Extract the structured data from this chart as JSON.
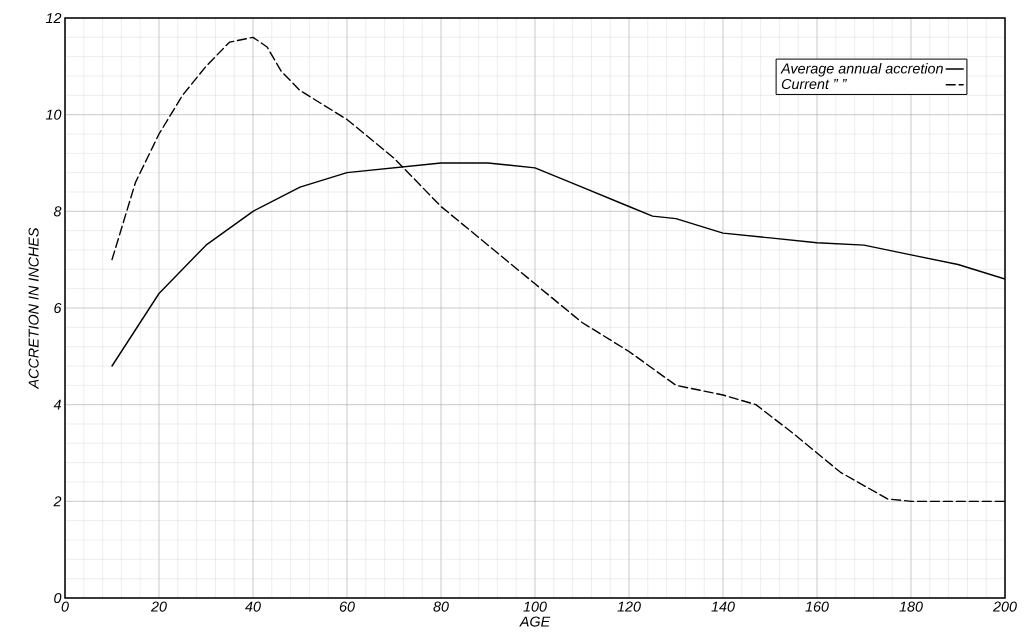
{
  "chart_data": {
    "type": "line",
    "xlabel": "AGE",
    "ylabel": "ACCRETION IN INCHES",
    "x": [
      10,
      15,
      20,
      25,
      30,
      35,
      40,
      43,
      46,
      50,
      60,
      70,
      80,
      90,
      100,
      110,
      120,
      130,
      140,
      147,
      155,
      165,
      175,
      180,
      200
    ],
    "series": [
      {
        "name": "Average annual accretion",
        "color": "#000000",
        "line_style": "solid",
        "x": [
          10,
          20,
          30,
          40,
          50,
          60,
          70,
          80,
          90,
          100,
          110,
          120,
          125,
          130,
          135,
          140,
          150,
          160,
          170,
          180,
          190,
          200
        ],
        "values": [
          4.8,
          6.3,
          7.3,
          8.0,
          8.5,
          8.8,
          8.9,
          9.0,
          9.0,
          8.9,
          8.5,
          8.1,
          7.9,
          7.85,
          7.7,
          7.55,
          7.45,
          7.35,
          7.3,
          7.1,
          6.9,
          6.6
        ]
      },
      {
        "name": "Current ” ”",
        "color": "#000000",
        "line_style": "dashed",
        "values": [
          7.0,
          8.6,
          9.6,
          10.4,
          11.0,
          11.5,
          11.6,
          11.4,
          10.9,
          10.5,
          9.9,
          9.1,
          8.1,
          7.3,
          6.5,
          5.7,
          5.1,
          4.4,
          4.2,
          4.0,
          3.4,
          2.6,
          2.05,
          2.0,
          2.0
        ]
      }
    ],
    "xlim": [
      0,
      200
    ],
    "ylim": [
      0,
      12
    ],
    "xticks": [
      0,
      20,
      40,
      60,
      80,
      100,
      120,
      140,
      160,
      180,
      200
    ],
    "yticks": [
      0,
      2,
      4,
      6,
      8,
      10,
      12
    ],
    "grid": true,
    "legend": "top right"
  }
}
